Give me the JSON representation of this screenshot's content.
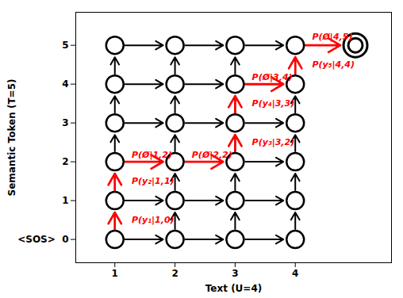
{
  "chart_data": {
    "type": "lattice",
    "xlabel": "Text (U=4)",
    "ylabel": "Semantic Token (T=5)",
    "xlim": [
      0.35,
      5.6
    ],
    "ylim": [
      -0.6,
      5.85
    ],
    "xticks": [
      1,
      2,
      3,
      4
    ],
    "yticks": [
      {
        "value": 0,
        "label": "<SOS>  0"
      },
      1,
      2,
      3,
      4,
      5
    ],
    "nodes": [
      [
        1,
        0
      ],
      [
        2,
        0
      ],
      [
        3,
        0
      ],
      [
        4,
        0
      ],
      [
        1,
        1
      ],
      [
        2,
        1
      ],
      [
        3,
        1
      ],
      [
        4,
        1
      ],
      [
        1,
        2
      ],
      [
        2,
        2
      ],
      [
        3,
        2
      ],
      [
        4,
        2
      ],
      [
        1,
        3
      ],
      [
        2,
        3
      ],
      [
        3,
        3
      ],
      [
        4,
        3
      ],
      [
        1,
        4
      ],
      [
        2,
        4
      ],
      [
        3,
        4
      ],
      [
        4,
        4
      ],
      [
        1,
        5
      ],
      [
        2,
        5
      ],
      [
        3,
        5
      ],
      [
        4,
        5
      ]
    ],
    "terminal_node": [
      5,
      5
    ],
    "edges": {
      "color": "#000000",
      "values": [
        [
          1,
          0,
          2,
          0
        ],
        [
          2,
          0,
          3,
          0
        ],
        [
          3,
          0,
          4,
          0
        ],
        [
          1,
          1,
          2,
          1
        ],
        [
          2,
          1,
          3,
          1
        ],
        [
          3,
          1,
          4,
          1
        ],
        [
          1,
          2,
          2,
          2
        ],
        [
          3,
          2,
          4,
          2
        ],
        [
          1,
          3,
          2,
          3
        ],
        [
          2,
          3,
          3,
          3
        ],
        [
          3,
          3,
          4,
          3
        ],
        [
          1,
          4,
          2,
          4
        ],
        [
          2,
          4,
          3,
          4
        ],
        [
          3,
          4,
          4,
          4
        ],
        [
          1,
          5,
          2,
          5
        ],
        [
          2,
          5,
          3,
          5
        ],
        [
          3,
          5,
          4,
          5
        ],
        [
          1,
          0,
          1,
          1
        ],
        [
          2,
          0,
          2,
          1
        ],
        [
          3,
          0,
          3,
          1
        ],
        [
          4,
          0,
          4,
          1
        ],
        [
          1,
          1,
          1,
          2
        ],
        [
          2,
          1,
          2,
          2
        ],
        [
          3,
          1,
          3,
          2
        ],
        [
          4,
          1,
          4,
          2
        ],
        [
          1,
          2,
          1,
          3
        ],
        [
          2,
          2,
          2,
          3
        ],
        [
          3,
          2,
          3,
          3
        ],
        [
          4,
          2,
          4,
          3
        ],
        [
          1,
          3,
          1,
          4
        ],
        [
          2,
          3,
          2,
          4
        ],
        [
          3,
          3,
          3,
          4
        ],
        [
          4,
          3,
          4,
          4
        ],
        [
          1,
          4,
          1,
          5
        ],
        [
          2,
          4,
          2,
          5
        ],
        [
          3,
          4,
          3,
          5
        ],
        [
          4,
          4,
          4,
          5
        ]
      ]
    },
    "path": {
      "color": "#ff0000",
      "values": [
        [
          1,
          0,
          1,
          1
        ],
        [
          1,
          1,
          1,
          2
        ],
        [
          1,
          2,
          2,
          2
        ],
        [
          2,
          2,
          3,
          2
        ],
        [
          3,
          2,
          3,
          3
        ],
        [
          3,
          3,
          3,
          4
        ],
        [
          3,
          4,
          4,
          4
        ],
        [
          4,
          4,
          4,
          5
        ],
        [
          4,
          5,
          5,
          5
        ]
      ]
    },
    "annotations": [
      {
        "text": "P(Ø|1,2)",
        "x": 1.28,
        "y": 2.18
      },
      {
        "text": "P(Ø|2,2)",
        "x": 2.28,
        "y": 2.18
      },
      {
        "text": "P(y₂|1,1)",
        "x": 1.28,
        "y": 1.5
      },
      {
        "text": "P(y₁|1,0)",
        "x": 1.28,
        "y": 0.5
      },
      {
        "text": "P(y₃|3,2)",
        "x": 3.28,
        "y": 2.5
      },
      {
        "text": "P(y₄|3,3)",
        "x": 3.28,
        "y": 3.5
      },
      {
        "text": "P(Ø|3,4)",
        "x": 3.28,
        "y": 4.18
      },
      {
        "text": "P(y₅|4,4)",
        "x": 4.28,
        "y": 4.5
      },
      {
        "text": "P(Ø|4,5)",
        "x": 4.28,
        "y": 5.22
      }
    ]
  }
}
